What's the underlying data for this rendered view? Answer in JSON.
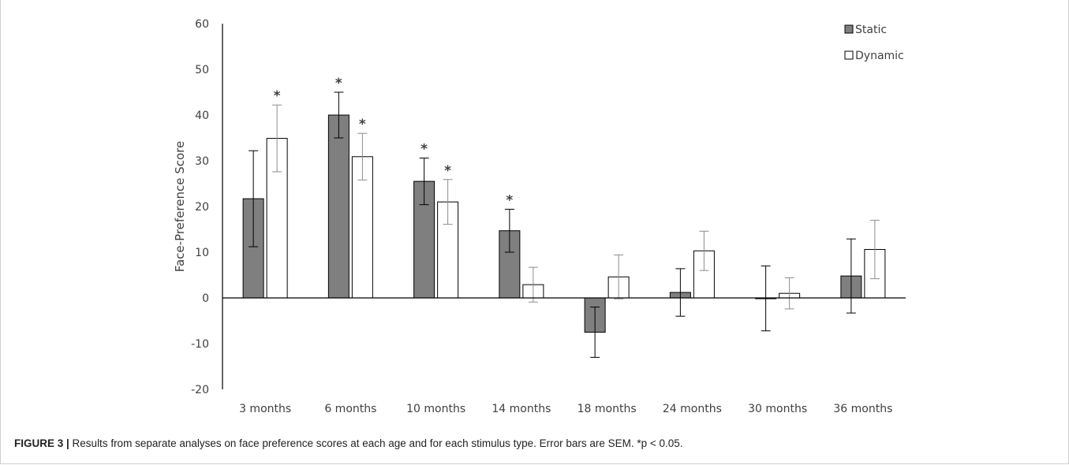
{
  "chart_data": {
    "type": "bar",
    "categories": [
      "3 months",
      "6 months",
      "10 months",
      "14 months",
      "18 months",
      "24 months",
      "30 months",
      "36 months"
    ],
    "series": [
      {
        "name": "Static",
        "color": "#7f7f7f",
        "values": [
          21.7,
          40.0,
          25.5,
          14.7,
          -7.5,
          1.2,
          -0.1,
          4.8
        ],
        "error": [
          10.5,
          5.0,
          5.1,
          4.7,
          5.5,
          5.2,
          7.1,
          8.1
        ],
        "significant": [
          false,
          true,
          true,
          true,
          false,
          false,
          false,
          false
        ]
      },
      {
        "name": "Dynamic",
        "color": "#ffffff",
        "values": [
          34.9,
          30.9,
          21.0,
          2.9,
          4.6,
          10.3,
          1.0,
          10.6
        ],
        "error": [
          7.3,
          5.1,
          4.9,
          3.8,
          4.8,
          4.3,
          3.4,
          6.4
        ],
        "significant": [
          true,
          true,
          true,
          false,
          false,
          false,
          false,
          false
        ]
      }
    ],
    "ylabel": "Face-Preference Score",
    "xlabel": "",
    "ylim": [
      -20,
      60
    ],
    "yticks": [
      -20,
      -10,
      0,
      10,
      20,
      30,
      40,
      50,
      60
    ],
    "legend": "top-right",
    "significance_marker": "*",
    "grid": false
  },
  "caption": {
    "label": "FIGURE 3 |",
    "text": " Results from separate analyses on face preference scores at each age and for each stimulus type. Error bars are SEM. *p < 0.05."
  }
}
